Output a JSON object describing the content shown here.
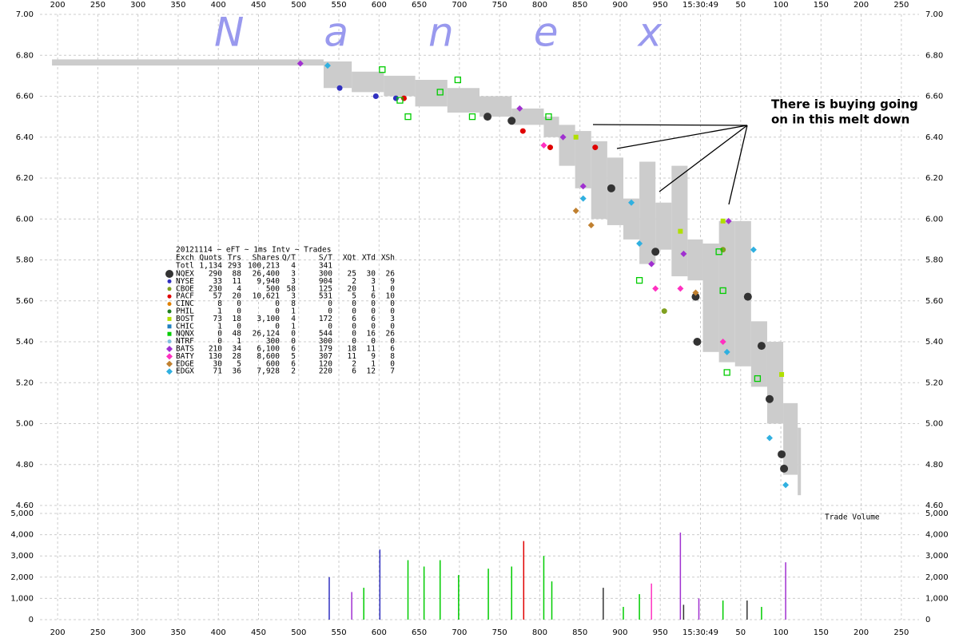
{
  "chart_data": {
    "type": "tick-chart",
    "watermark": "Nanex",
    "volume_label": "Trade Volume",
    "annotation": [
      "There is buying going",
      "on in this melt down"
    ],
    "grid": true,
    "xlim": [
      178,
      1272
    ],
    "xticks": [
      200,
      250,
      300,
      350,
      400,
      450,
      500,
      550,
      600,
      650,
      700,
      750,
      800,
      850,
      900,
      950,
      {
        "value": 1000,
        "label": "15:30:49"
      },
      {
        "value": 1050,
        "label": "50"
      },
      {
        "value": 1100,
        "label": "100"
      },
      {
        "value": 1150,
        "label": "150"
      },
      {
        "value": 1200,
        "label": "200"
      },
      {
        "value": 1250,
        "label": "250"
      }
    ],
    "ylim": [
      4.6,
      7.0
    ],
    "yticks": [
      {
        "value": 4.6,
        "label": "4.60"
      },
      {
        "value": 4.8,
        "label": "4.80"
      },
      {
        "value": 5.0,
        "label": "5.00"
      },
      {
        "value": 5.2,
        "label": "5.20"
      },
      {
        "value": 5.4,
        "label": "5.40"
      },
      {
        "value": 5.6,
        "label": "5.60"
      },
      {
        "value": 5.8,
        "label": "5.80"
      },
      {
        "value": 6.0,
        "label": "6.00"
      },
      {
        "value": 6.2,
        "label": "6.20"
      },
      {
        "value": 6.4,
        "label": "6.40"
      },
      {
        "value": 6.6,
        "label": "6.60"
      },
      {
        "value": 6.8,
        "label": "6.80"
      },
      {
        "value": 7.0,
        "label": "7.00"
      }
    ],
    "y2lim": [
      0,
      5000
    ],
    "y2ticks": [
      0,
      {
        "value": 1000,
        "label": "1,000"
      },
      {
        "value": 2000,
        "label": "2,000"
      },
      {
        "value": 3000,
        "label": "3,000"
      },
      {
        "value": 4000,
        "label": "4,000"
      },
      {
        "value": 5000,
        "label": "5,000"
      }
    ],
    "spread": {
      "color": "#cccccc",
      "edges": [
        193,
        531,
        566,
        606,
        645,
        685,
        725,
        765,
        805,
        824,
        844,
        864,
        884,
        904,
        924,
        944,
        964,
        984,
        1003,
        1023,
        1043,
        1063,
        1083,
        1103,
        1121,
        1125
      ],
      "lo": [
        6.75,
        6.64,
        6.62,
        6.6,
        6.55,
        6.52,
        6.5,
        6.46,
        6.4,
        6.26,
        6.15,
        6.0,
        5.97,
        5.9,
        5.78,
        5.85,
        5.72,
        5.7,
        5.35,
        5.3,
        5.28,
        5.18,
        5.0,
        4.75,
        4.65
      ],
      "hi": [
        6.78,
        6.77,
        6.72,
        6.7,
        6.68,
        6.64,
        6.6,
        6.54,
        6.5,
        6.46,
        6.43,
        6.38,
        6.3,
        6.1,
        6.28,
        6.08,
        6.26,
        5.9,
        5.88,
        5.99,
        5.99,
        5.5,
        5.4,
        5.1,
        4.98
      ]
    },
    "table": {
      "caption": "20121114 ~ eFT ~ 1ms Intv ~ Trades",
      "columns": [
        "Exch",
        "Quots",
        "Trs",
        "Shares",
        "Q/T",
        "S/T",
        "XQt",
        "XTd",
        "XSh"
      ],
      "total": [
        "Totl",
        "1,134",
        "293",
        "100,213",
        "4",
        "341"
      ]
    },
    "series": [
      {
        "name": "NQEX",
        "color": "#333333",
        "marker": "big-circle",
        "stats": [
          "290",
          "88",
          "26,400",
          "3",
          "300",
          "25",
          "30",
          "26"
        ],
        "x": [
          735,
          765,
          889,
          944,
          994,
          996,
          1059,
          1076,
          1086,
          1101,
          1104
        ],
        "values": [
          6.5,
          6.48,
          6.15,
          5.84,
          5.62,
          5.4,
          5.62,
          5.38,
          5.12,
          4.85,
          4.78
        ]
      },
      {
        "name": "NYSE",
        "color": "#3030c0",
        "marker": "circle",
        "stats": [
          "33",
          "11",
          "9,940",
          "3",
          "904",
          "2",
          "3",
          "9"
        ],
        "x": [
          551,
          596,
          621
        ],
        "values": [
          6.64,
          6.6,
          6.59
        ]
      },
      {
        "name": "CBOE",
        "color": "#80a020",
        "marker": "circle",
        "stats": [
          "230",
          "4",
          "500",
          "58",
          "125",
          "20",
          "1",
          "0"
        ],
        "x": [
          955,
          1028
        ],
        "values": [
          5.55,
          5.85
        ]
      },
      {
        "name": "PACF",
        "color": "#e00000",
        "marker": "circle",
        "stats": [
          "57",
          "20",
          "10,621",
          "3",
          "531",
          "5",
          "6",
          "10"
        ],
        "x": [
          631,
          779,
          813,
          869
        ],
        "values": [
          6.59,
          6.43,
          6.35,
          6.35
        ]
      },
      {
        "name": "CINC",
        "color": "#e08000",
        "marker": "circle",
        "stats": [
          "8",
          "0",
          "0",
          "8",
          "0",
          "0",
          "0",
          "0"
        ],
        "x": [],
        "values": []
      },
      {
        "name": "PHIL",
        "color": "#208020",
        "marker": "circle",
        "stats": [
          "1",
          "0",
          "0",
          "1",
          "0",
          "0",
          "0",
          "0"
        ],
        "x": [],
        "values": []
      },
      {
        "name": "BOST",
        "color": "#b0e000",
        "marker": "square",
        "stats": [
          "73",
          "18",
          "3,100",
          "4",
          "172",
          "6",
          "6",
          "3"
        ],
        "x": [
          845,
          975,
          1028,
          1101
        ],
        "values": [
          6.4,
          5.94,
          5.99,
          5.24
        ]
      },
      {
        "name": "CHIC",
        "color": "#2080c0",
        "marker": "square",
        "stats": [
          "1",
          "0",
          "0",
          "1",
          "0",
          "0",
          "0",
          "0"
        ],
        "x": [],
        "values": []
      },
      {
        "name": "NQNX",
        "color": "#00cc00",
        "marker": "open-square",
        "stats": [
          "0",
          "48",
          "26,124",
          "0",
          "544",
          "0",
          "16",
          "26"
        ],
        "x": [
          604,
          626,
          636,
          676,
          698,
          716,
          811,
          924,
          1023,
          1028,
          1033,
          1071
        ],
        "values": [
          6.73,
          6.58,
          6.5,
          6.62,
          6.68,
          6.5,
          6.5,
          5.7,
          5.84,
          5.65,
          5.25,
          5.22
        ]
      },
      {
        "name": "NTRF",
        "color": "#80c0e0",
        "marker": "circle",
        "stats": [
          "0",
          "1",
          "300",
          "0",
          "300",
          "0",
          "0",
          "0"
        ],
        "x": [],
        "values": []
      },
      {
        "name": "BATS",
        "color": "#a030d0",
        "marker": "diamond",
        "stats": [
          "210",
          "34",
          "6,100",
          "6",
          "179",
          "18",
          "11",
          "6"
        ],
        "x": [
          502,
          775,
          829,
          854,
          939,
          979,
          1035
        ],
        "values": [
          6.76,
          6.54,
          6.4,
          6.16,
          5.78,
          5.83,
          5.99
        ]
      },
      {
        "name": "BATY",
        "color": "#ff30c0",
        "marker": "diamond",
        "stats": [
          "130",
          "28",
          "8,600",
          "5",
          "307",
          "11",
          "9",
          "8"
        ],
        "x": [
          805,
          944,
          975,
          1028
        ],
        "values": [
          6.36,
          5.66,
          5.66,
          5.4
        ]
      },
      {
        "name": "EDGE",
        "color": "#c08030",
        "marker": "diamond",
        "stats": [
          "30",
          "5",
          "600",
          "6",
          "120",
          "2",
          "1",
          "0"
        ],
        "x": [
          845,
          864,
          994
        ],
        "values": [
          6.04,
          5.97,
          5.64
        ]
      },
      {
        "name": "EDGX",
        "color": "#30b0e0",
        "marker": "diamond",
        "stats": [
          "71",
          "36",
          "7,928",
          "2",
          "220",
          "6",
          "12",
          "7"
        ],
        "x": [
          536,
          854,
          914,
          924,
          1033,
          1066,
          1086,
          1106
        ],
        "values": [
          6.75,
          6.1,
          6.08,
          5.88,
          5.35,
          5.85,
          4.93,
          4.7
        ]
      }
    ],
    "volume": {
      "x": [
        538,
        566,
        581,
        601,
        636,
        656,
        676,
        699,
        736,
        765,
        780,
        805,
        815,
        879,
        904,
        924,
        939,
        975,
        979,
        998,
        1028,
        1058,
        1076,
        1106
      ],
      "values": [
        2000,
        1300,
        1500,
        3300,
        2800,
        2500,
        2800,
        2100,
        2400,
        2500,
        3700,
        3000,
        1800,
        1500,
        600,
        1200,
        1700,
        4100,
        700,
        1000,
        900,
        900,
        600,
        2700
      ],
      "colors": [
        "#3030c0",
        "#a030d0",
        "#00cc00",
        "#3030c0",
        "#00cc00",
        "#00cc00",
        "#00cc00",
        "#00cc00",
        "#00cc00",
        "#00cc00",
        "#e00000",
        "#00cc00",
        "#00cc00",
        "#333333",
        "#00cc00",
        "#00cc00",
        "#ff30c0",
        "#a030d0",
        "#333333",
        "#a030d0",
        "#00cc00",
        "#333333",
        "#00cc00",
        "#a030d0"
      ]
    }
  }
}
